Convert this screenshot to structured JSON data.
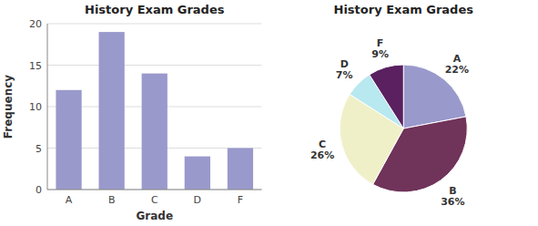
{
  "chart_data": [
    {
      "type": "bar",
      "title": "History Exam Grades",
      "x_label": "Grade",
      "y_label": "Frequency",
      "categories": [
        "A",
        "B",
        "C",
        "D",
        "F"
      ],
      "values": [
        12,
        19,
        14,
        4,
        5
      ],
      "color": "#9999cc",
      "ylim": [
        0,
        20
      ],
      "yticks": [
        0,
        5,
        10,
        15,
        20
      ],
      "grid": true
    },
    {
      "type": "pie",
      "title": "History Exam Grades",
      "categories": [
        "A",
        "B",
        "C",
        "D",
        "F"
      ],
      "values": [
        22,
        36,
        26,
        7,
        9
      ],
      "value_labels": [
        "22%",
        "36%",
        "26%",
        "7%",
        "9%"
      ],
      "colors": [
        "#9999cc",
        "#70335a",
        "#f0f0c8",
        "#b8e8f0",
        "#5a2060"
      ],
      "data_labels": true
    }
  ]
}
